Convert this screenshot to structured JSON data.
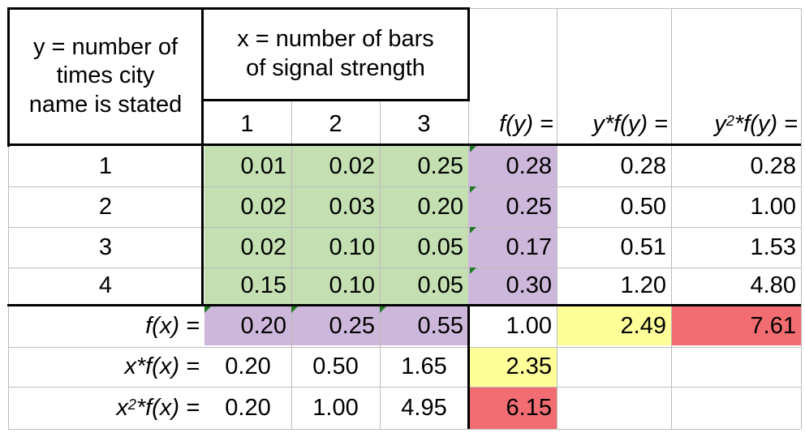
{
  "header": {
    "y_label": [
      "y =  number of",
      "times city",
      "name is stated"
    ],
    "x_label": [
      "x =  number of bars",
      "of signal strength"
    ],
    "x_values": [
      "1",
      "2",
      "3"
    ],
    "fy_label": "f(y) =",
    "yfy_label": "y*f(y) =",
    "y2fy_label": "*f(y) =",
    "y2_sup": "2"
  },
  "rows": [
    {
      "y": "1",
      "p": [
        "0.01",
        "0.02",
        "0.25"
      ],
      "fy": "0.28",
      "yfy": "0.28",
      "y2fy": "0.28"
    },
    {
      "y": "2",
      "p": [
        "0.02",
        "0.03",
        "0.20"
      ],
      "fy": "0.25",
      "yfy": "0.50",
      "y2fy": "1.00"
    },
    {
      "y": "3",
      "p": [
        "0.02",
        "0.10",
        "0.05"
      ],
      "fy": "0.17",
      "yfy": "0.51",
      "y2fy": "1.53"
    },
    {
      "y": "4",
      "p": [
        "0.15",
        "0.10",
        "0.05"
      ],
      "fy": "0.30",
      "yfy": "1.20",
      "y2fy": "4.80"
    }
  ],
  "fx_row": {
    "label": "f(x) =",
    "values": [
      "0.20",
      "0.25",
      "0.55"
    ],
    "total": "1.00",
    "ey": "2.49",
    "ey2": "7.61"
  },
  "xfx_row": {
    "label": "x*f(x) =",
    "values": [
      "0.20",
      "0.50",
      "1.65"
    ],
    "ex": "2.35"
  },
  "x2fx_row": {
    "label_x": "x",
    "label_sup": "2",
    "label_rest": "*f(x) =",
    "values": [
      "0.20",
      "1.00",
      "4.95"
    ],
    "ex2": "6.15"
  },
  "colors": {
    "joint": "#c4dfb2",
    "marginal": "#cdb8dc",
    "mean": "#ffff99",
    "second_moment": "#f26d72",
    "grid": "#bcbcbc"
  }
}
